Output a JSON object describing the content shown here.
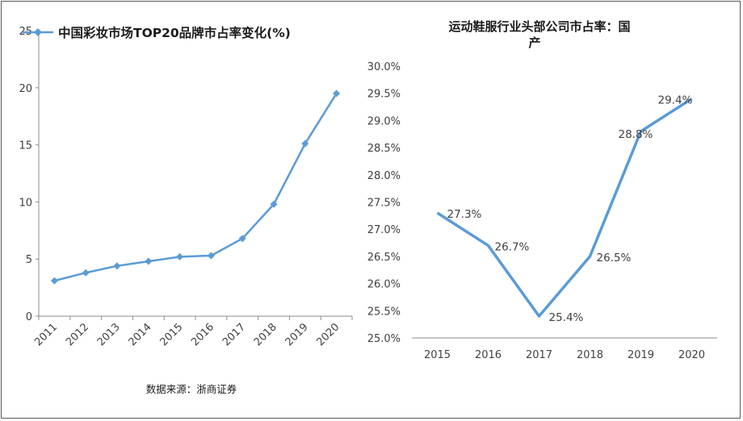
{
  "chart_data": [
    {
      "type": "line",
      "legend": "中国彩妆市场TOP20品牌市占率变化(%)",
      "categories": [
        "2011",
        "2012",
        "2013",
        "2014",
        "2015",
        "2016",
        "2017",
        "2018",
        "2019",
        "2020"
      ],
      "series": [
        {
          "name": "中国彩妆市场TOP20品牌市占率变化(%)",
          "values": [
            3.1,
            3.8,
            4.4,
            4.8,
            5.2,
            5.3,
            6.8,
            9.8,
            15.1,
            19.5
          ]
        }
      ],
      "yticks": [
        "0",
        "5",
        "10",
        "15",
        "20",
        "25"
      ],
      "ylim": [
        0,
        25
      ],
      "marker": "diamond",
      "line_color": "#5b9bd5",
      "source": "数据来源：浙商证券"
    },
    {
      "type": "line",
      "title_line1": "运动鞋服行业头部公司市占率：国",
      "title_line2": "产",
      "categories": [
        "2015",
        "2016",
        "2017",
        "2018",
        "2019",
        "2020"
      ],
      "series": [
        {
          "values": [
            27.3,
            26.7,
            25.4,
            26.5,
            28.8,
            29.4
          ]
        }
      ],
      "data_labels": [
        "27.3%",
        "26.7%",
        "25.4%",
        "26.5%",
        "28.8%",
        "29.4%"
      ],
      "yticks": [
        "25.0%",
        "25.5%",
        "26.0%",
        "26.5%",
        "27.0%",
        "27.5%",
        "28.0%",
        "28.5%",
        "29.0%",
        "29.5%",
        "30.0%"
      ],
      "ylim": [
        25.0,
        30.0
      ],
      "line_color": "#5b9bd5"
    }
  ]
}
